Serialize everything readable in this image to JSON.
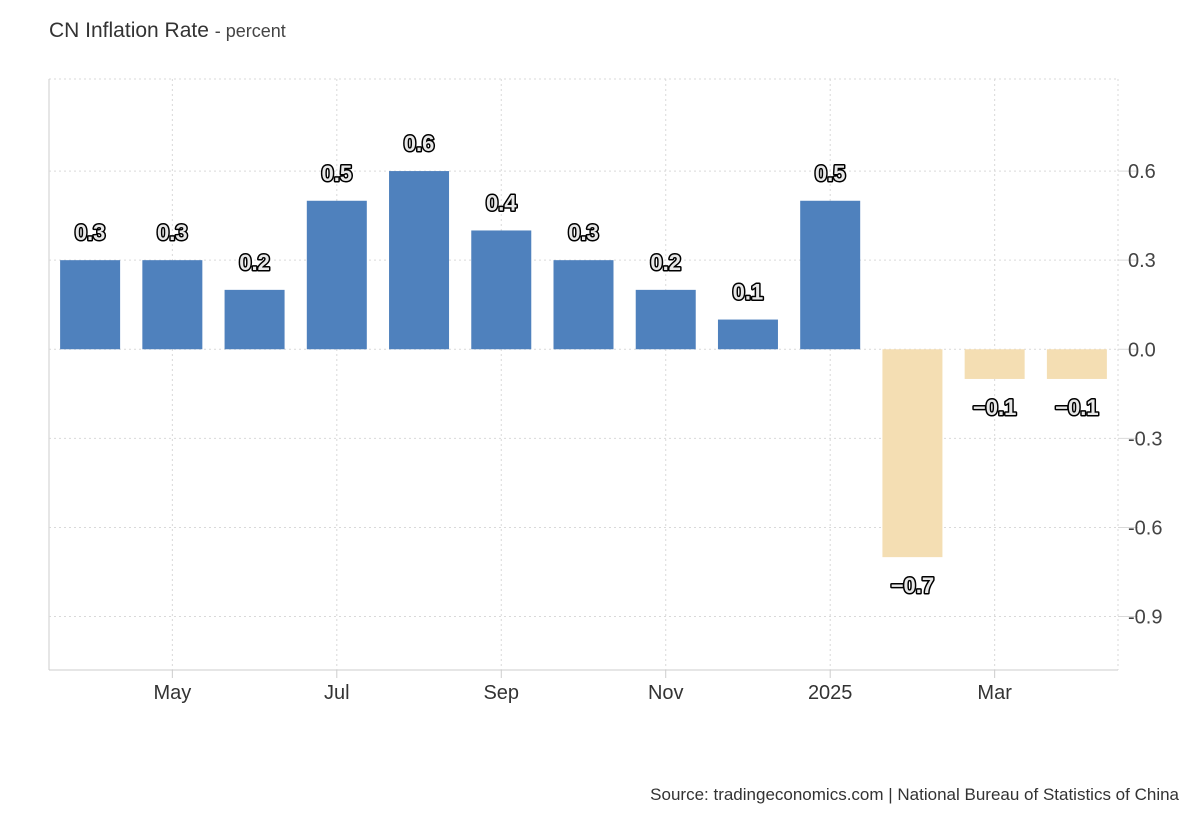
{
  "title": "CN Inflation Rate",
  "title_unit": "- percent",
  "source": "Source: tradingeconomics.com | National Bureau of Statistics of China",
  "colors": {
    "positive": "#4f81bd",
    "negative": "#f4deb3",
    "grid": "#d9d9d9",
    "axis": "#cccccc"
  },
  "chart_data": {
    "type": "bar",
    "categories": [
      "2024-04",
      "2024-05",
      "2024-06",
      "2024-07",
      "2024-08",
      "2024-09",
      "2024-10",
      "2024-11",
      "2024-12",
      "2025-01",
      "2025-02",
      "2025-03",
      "2025-04"
    ],
    "values": [
      0.3,
      0.3,
      0.2,
      0.5,
      0.6,
      0.4,
      0.3,
      0.2,
      0.1,
      0.5,
      -0.7,
      -0.1,
      -0.1
    ],
    "x_tick_labels": [
      {
        "category": "2024-05",
        "label": "May"
      },
      {
        "category": "2024-07",
        "label": "Jul"
      },
      {
        "category": "2024-09",
        "label": "Sep"
      },
      {
        "category": "2024-11",
        "label": "Nov"
      },
      {
        "category": "2025-01",
        "label": "2025"
      },
      {
        "category": "2025-03",
        "label": "Mar"
      }
    ],
    "y_ticks": [
      "0.6",
      "0.3",
      "0.0",
      "-0.3",
      "-0.6",
      "-0.9"
    ],
    "ylim": [
      -1.08,
      0.91
    ],
    "y_axis_position": "right",
    "grid": true,
    "legend": "none",
    "data_labels": [
      "0.3",
      "0.3",
      "0.2",
      "0.5",
      "0.6",
      "0.4",
      "0.3",
      "0.2",
      "0.1",
      "0.5",
      "−0.7",
      "−0.1",
      "−0.1"
    ]
  }
}
